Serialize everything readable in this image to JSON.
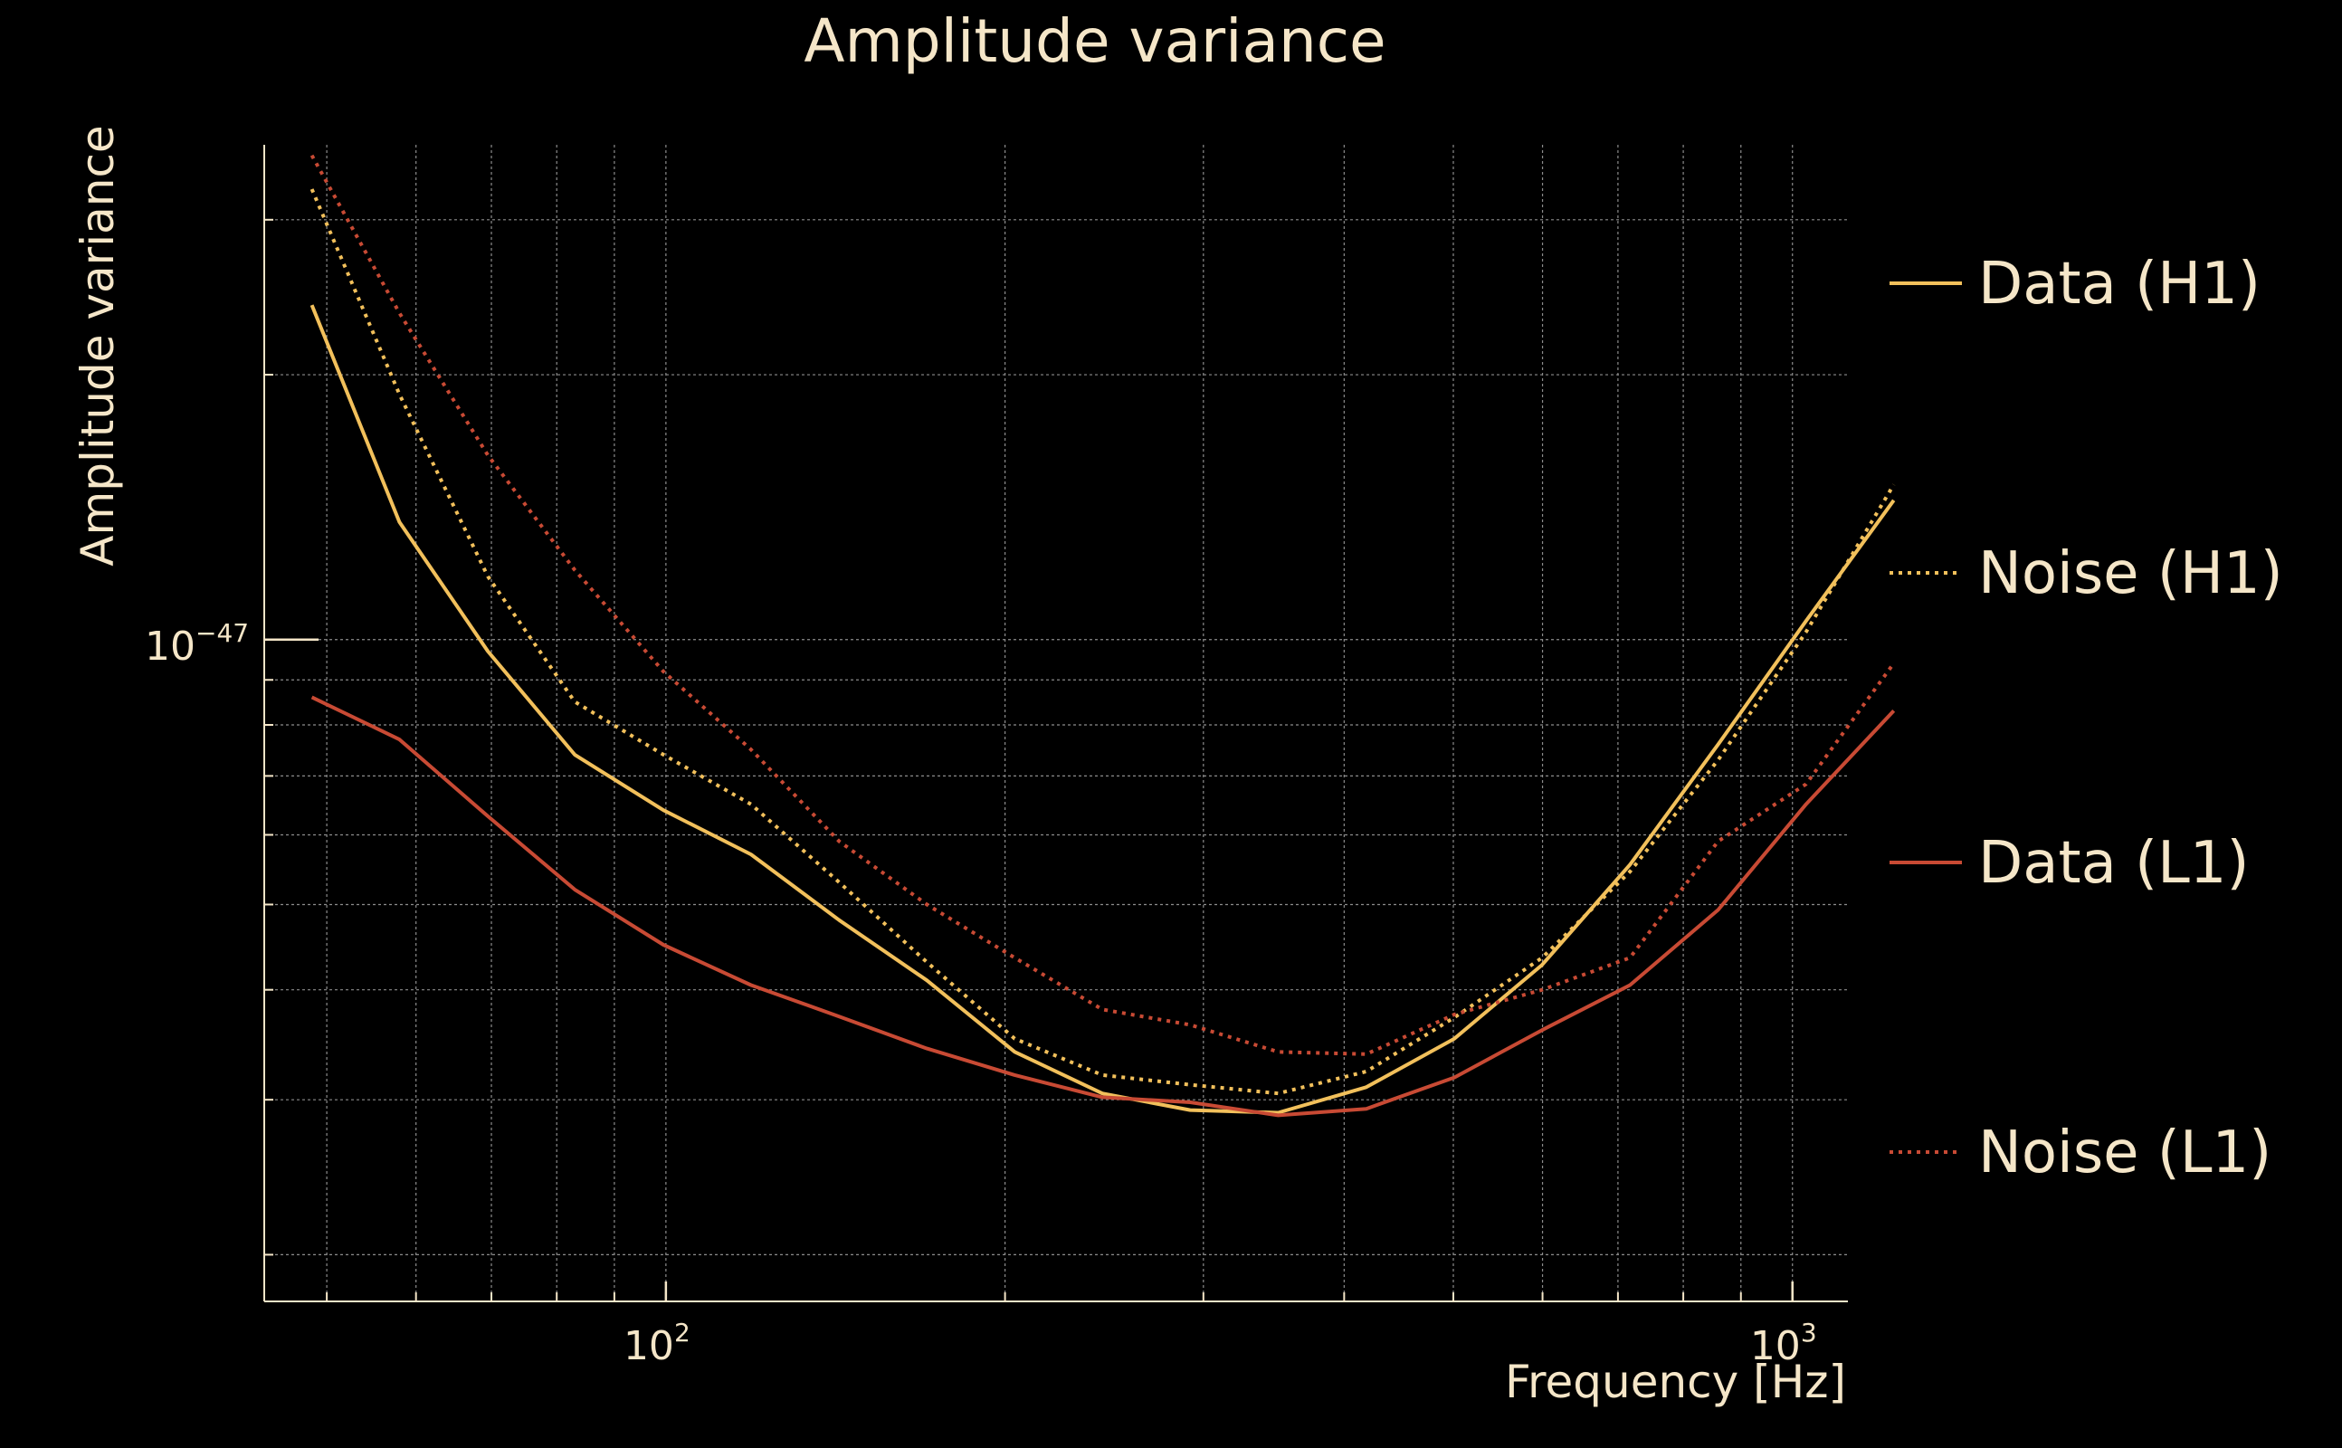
{
  "chart_data": {
    "type": "line",
    "title": "Amplitude variance",
    "xlabel": "Frequency [Hz]",
    "ylabel": "Amplitude variance",
    "xscale": "log",
    "yscale": "log",
    "xlim": [
      44,
      1120
    ],
    "ylim": [
      1.77e-48,
      3.65e-47
    ],
    "x_ticks": [
      {
        "value": 100,
        "base": "10",
        "exp": "2"
      },
      {
        "value": 1000,
        "base": "10",
        "exp": "3"
      }
    ],
    "y_ticks": [
      {
        "value": 1e-47,
        "base": "10",
        "exp": "−47"
      }
    ],
    "grid": true,
    "legend_position": "right",
    "x": [
      48.5,
      58,
      69.5,
      83,
      99.5,
      119,
      142.5,
      170.5,
      204,
      244,
      292,
      349.5,
      418.5,
      501,
      599.5,
      717.5,
      859,
      1028,
      1230
    ],
    "series": [
      {
        "name": "Data (H1)",
        "color": "#f2c05b",
        "dash": "solid",
        "values": [
          2.4e-47,
          1.36e-47,
          9.7e-48,
          7.4e-48,
          6.4e-48,
          5.7e-48,
          4.8e-48,
          4.1e-48,
          3.4e-48,
          3.05e-48,
          2.92e-48,
          2.9e-48,
          3.1e-48,
          3.52e-48,
          4.27e-48,
          5.55e-48,
          7.6e-48,
          1.05e-47,
          1.44e-47
        ]
      },
      {
        "name": "Noise (H1)",
        "color": "#f2c05b",
        "dash": "dotted",
        "values": [
          3.25e-47,
          1.9e-47,
          1.18e-47,
          8.5e-48,
          7.4e-48,
          6.5e-48,
          5.3e-48,
          4.3e-48,
          3.52e-48,
          3.2e-48,
          3.12e-48,
          3.05e-48,
          3.23e-48,
          3.72e-48,
          4.35e-48,
          5.45e-48,
          7.3e-48,
          1.02e-47,
          1.5e-47
        ]
      },
      {
        "name": "Data (L1)",
        "color": "#c84a34",
        "dash": "solid",
        "values": [
          8.6e-48,
          7.7e-48,
          6.3e-48,
          5.2e-48,
          4.5e-48,
          4.05e-48,
          3.73e-48,
          3.43e-48,
          3.2e-48,
          3.02e-48,
          2.98e-48,
          2.88e-48,
          2.93e-48,
          3.18e-48,
          3.6e-48,
          4.05e-48,
          4.93e-48,
          6.5e-48,
          8.3e-48
        ]
      },
      {
        "name": "Noise (L1)",
        "color": "#c84a34",
        "dash": "dotted",
        "values": [
          3.55e-47,
          2.35e-47,
          1.62e-47,
          1.2e-47,
          9.2e-48,
          7.5e-48,
          5.9e-48,
          5e-48,
          4.35e-48,
          3.8e-48,
          3.65e-48,
          3.4e-48,
          3.38e-48,
          3.75e-48,
          4e-48,
          4.35e-48,
          5.9e-48,
          6.85e-48,
          9.4e-48
        ]
      }
    ]
  }
}
